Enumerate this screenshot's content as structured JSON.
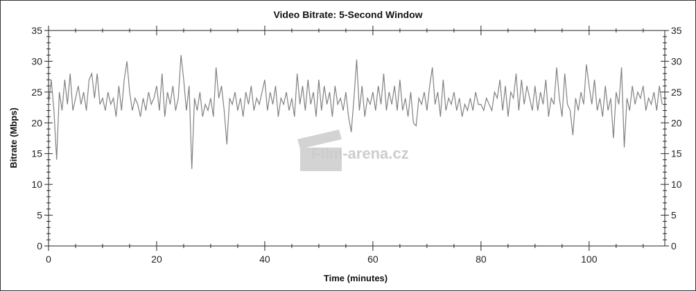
{
  "chart_data": {
    "type": "line",
    "title": "Video Bitrate: 5-Second Window",
    "xlabel": "Time (minutes)",
    "ylabel": "Bitrate (Mbps)",
    "xlim": [
      0,
      114
    ],
    "ylim": [
      0,
      35
    ],
    "x_ticks": [
      0,
      20,
      40,
      60,
      80,
      100
    ],
    "y_ticks": [
      0,
      5,
      10,
      15,
      20,
      25,
      30,
      35
    ],
    "y_axis_right": true,
    "grid": false,
    "series_color": "#808080",
    "x_start": 0,
    "x_step": 0.5,
    "values": [
      23,
      27,
      22,
      14,
      25,
      22,
      27,
      23,
      28,
      22,
      24,
      26,
      23,
      25,
      22,
      27,
      28,
      24,
      28,
      23,
      24,
      22,
      25,
      23,
      24,
      21,
      26,
      22,
      27,
      30,
      25,
      22,
      24,
      23,
      21,
      24,
      22,
      25,
      23,
      24,
      26,
      22,
      28,
      21,
      25,
      23,
      26,
      22,
      24,
      31,
      27,
      22,
      26,
      12.5,
      24,
      22,
      25,
      21,
      23,
      22,
      24,
      21,
      29,
      24,
      26,
      22,
      16.5,
      24,
      23,
      25,
      22,
      24,
      21,
      25,
      23,
      26,
      22,
      24,
      23,
      25,
      27,
      22,
      25,
      23,
      26,
      21,
      24,
      23,
      25,
      22,
      24,
      21,
      28,
      23,
      26,
      22,
      27,
      23,
      25,
      21,
      27,
      22,
      26,
      23,
      25,
      21,
      26,
      23,
      24,
      22,
      25,
      21,
      18.5,
      24,
      30.3,
      22,
      26,
      21,
      24,
      23,
      25,
      22,
      26,
      23,
      28,
      22,
      25,
      23,
      26,
      22,
      27,
      22,
      24,
      21,
      25,
      20,
      19.5,
      24,
      23,
      25,
      22,
      26,
      29,
      23,
      25,
      21,
      27,
      22,
      24,
      23,
      25,
      22,
      24,
      21,
      23,
      22,
      24,
      22,
      25,
      23,
      23,
      22,
      24,
      23,
      22,
      25,
      24,
      27,
      22,
      26,
      21,
      25,
      24,
      28,
      22,
      27,
      23,
      26,
      24,
      22,
      26,
      22,
      25,
      23,
      27,
      21,
      24,
      23,
      29,
      24,
      21,
      28,
      23,
      22,
      18,
      24,
      22,
      25,
      23,
      29.5,
      26,
      23,
      27,
      22,
      24,
      21,
      26,
      22,
      24,
      17.5,
      25,
      23,
      29,
      16,
      24,
      22,
      26,
      23,
      25,
      24,
      26,
      22,
      24,
      23,
      25,
      22,
      26,
      23
    ]
  },
  "watermark": {
    "text": "Film-arena.cz"
  }
}
